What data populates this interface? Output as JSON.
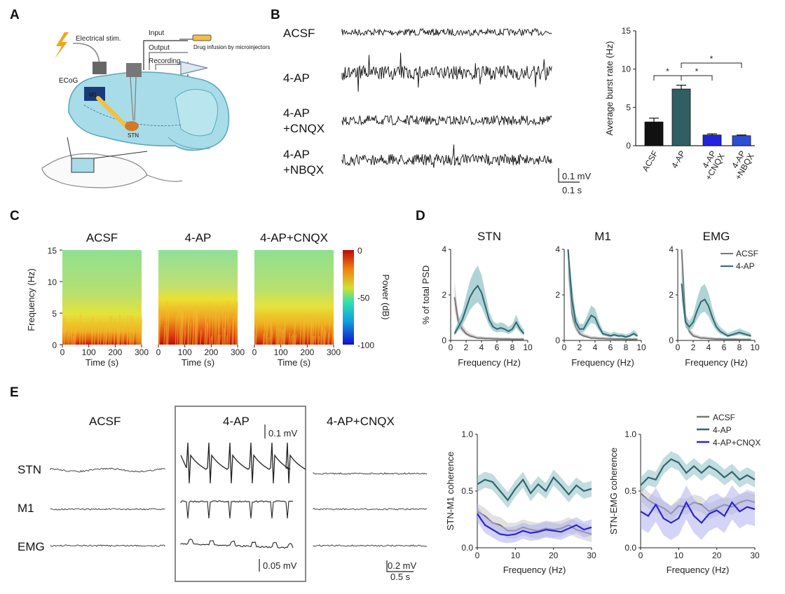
{
  "panels": {
    "a": "A",
    "b": "B",
    "c": "C",
    "d": "D",
    "e": "E"
  },
  "panelA": {
    "electrical_stim": "Electrical stim.",
    "input": "Input",
    "output": "Output",
    "drug": "Drug infusion by microinjectors",
    "recording": "Recording",
    "ecog": "ECoG",
    "m1": "M1",
    "stn": "STN"
  },
  "panelB": {
    "trace_labels": [
      "ACSF",
      "4-AP",
      "4-AP",
      "+CNQX",
      "4-AP",
      "+NBQX"
    ],
    "scale_mv": "0.1 mV",
    "scale_s": "0.1 s",
    "sig": "*"
  },
  "chart_data": [
    {
      "id": "b_bar",
      "type": "bar",
      "categories": [
        "ACSF",
        "4-AP",
        "4-AP +CNQX",
        "4-AP +NBQX"
      ],
      "tick_lines": [
        [
          "ACSF"
        ],
        [
          "4-AP"
        ],
        [
          "4-AP",
          "+CNQX"
        ],
        [
          "4-AP",
          "+NBQX"
        ]
      ],
      "values": [
        3.1,
        7.4,
        1.4,
        1.3
      ],
      "errors": [
        0.5,
        0.5,
        0.15,
        0.1
      ],
      "colors": [
        "#111111",
        "#2f5f62",
        "#2222dd",
        "#2a4fd6"
      ],
      "ylabel": "Average burst rate (Hz)",
      "ylim": [
        0,
        15
      ],
      "yticks": [
        0,
        5,
        10,
        15
      ]
    },
    {
      "id": "c_spectrograms",
      "type": "heatmap",
      "titles": [
        "ACSF",
        "4-AP",
        "4-AP+CNQX"
      ],
      "xlabel": "Time (s)",
      "ylabel": "Frequency (Hz)",
      "xlim": [
        0,
        300
      ],
      "ylim": [
        0,
        15
      ],
      "xticks": [
        0,
        100,
        200,
        300
      ],
      "yticks": [
        0,
        5,
        10,
        15
      ],
      "colorbar_label": "Power (dB)",
      "colorbar_range": [
        -100,
        0
      ],
      "colorbar_ticks": [
        0,
        -50,
        -100
      ]
    },
    {
      "id": "d_psd",
      "type": "line",
      "titles": [
        "STN",
        "M1",
        "EMG"
      ],
      "xlabel": "Frequency (Hz)",
      "ylabel": "% of total PSD",
      "xlim": [
        0,
        10
      ],
      "ylim": [
        0,
        4
      ],
      "xticks": [
        0,
        2,
        4,
        6,
        8,
        10
      ],
      "yticks": [
        0,
        2,
        4
      ],
      "legend": [
        "ACSF",
        "4-AP"
      ],
      "x": [
        0.5,
        1,
        1.5,
        2,
        2.5,
        3,
        3.5,
        4,
        4.5,
        5,
        5.5,
        6,
        6.5,
        7,
        7.5,
        8,
        8.5,
        9,
        9.5
      ],
      "series": [
        {
          "panel": "STN",
          "name": "ACSF",
          "values": [
            1.9,
            0.8,
            0.5,
            0.3,
            0.2,
            0.15,
            0.1,
            0.1,
            0.08,
            0.08,
            0.07,
            0.07,
            0.06,
            0.06,
            0.06,
            0.05,
            0.05,
            0.05,
            0.05
          ]
        },
        {
          "panel": "STN",
          "name": "4-AP",
          "values": [
            0.3,
            0.6,
            0.9,
            1.4,
            1.9,
            2.2,
            2.4,
            2.1,
            1.5,
            0.9,
            0.6,
            0.5,
            0.55,
            0.5,
            0.4,
            0.5,
            0.8,
            0.5,
            0.3
          ]
        },
        {
          "panel": "M1",
          "name": "ACSF",
          "values": [
            4.0,
            1.2,
            0.6,
            0.3,
            0.2,
            0.15,
            0.1,
            0.1,
            0.08,
            0.08,
            0.07,
            0.07,
            0.06,
            0.06,
            0.06,
            0.05,
            0.05,
            0.05,
            0.05
          ]
        },
        {
          "panel": "M1",
          "name": "4-AP",
          "values": [
            4.0,
            1.8,
            0.8,
            0.5,
            0.5,
            0.8,
            1.1,
            1.0,
            0.6,
            0.3,
            0.25,
            0.2,
            0.25,
            0.2,
            0.2,
            0.15,
            0.2,
            0.3,
            0.2
          ]
        },
        {
          "panel": "EMG",
          "name": "ACSF",
          "values": [
            4.0,
            0.9,
            0.4,
            0.2,
            0.15,
            0.1,
            0.1,
            0.08,
            0.07,
            0.06,
            0.06,
            0.05,
            0.05,
            0.05,
            0.05,
            0.04,
            0.04,
            0.04,
            0.04
          ]
        },
        {
          "panel": "EMG",
          "name": "4-AP",
          "values": [
            2.5,
            0.8,
            0.6,
            0.8,
            1.3,
            1.7,
            1.8,
            1.5,
            1.0,
            0.6,
            0.4,
            0.3,
            0.2,
            0.25,
            0.3,
            0.35,
            0.3,
            0.25,
            0.2
          ]
        }
      ]
    },
    {
      "id": "e_coherence",
      "type": "line",
      "ylabels": [
        "STN-M1 coherence",
        "STN-EMG coherence"
      ],
      "xlabel": "Frequency (Hz)",
      "xlim": [
        0,
        30
      ],
      "ylim": [
        0,
        1.0
      ],
      "xticks": [
        0,
        10,
        20,
        30
      ],
      "yticks": [
        0,
        0.5,
        1.0
      ],
      "ytick_labels": [
        "0.0",
        "0.5",
        "1.0"
      ],
      "legend": [
        "ACSF",
        "4-AP",
        "4-AP+CNQX"
      ],
      "x": [
        0,
        2,
        4,
        6,
        8,
        10,
        12,
        14,
        16,
        18,
        20,
        22,
        24,
        26,
        28,
        30
      ],
      "series": [
        {
          "panel": "STN-M1",
          "name": "ACSF",
          "values": [
            0.32,
            0.28,
            0.22,
            0.2,
            0.15,
            0.15,
            0.18,
            0.16,
            0.15,
            0.17,
            0.16,
            0.17,
            0.2,
            0.16,
            0.14,
            0.12
          ]
        },
        {
          "panel": "STN-M1",
          "name": "4-AP",
          "values": [
            0.56,
            0.6,
            0.58,
            0.5,
            0.42,
            0.52,
            0.6,
            0.48,
            0.56,
            0.5,
            0.62,
            0.55,
            0.47,
            0.55,
            0.5,
            0.52
          ]
        },
        {
          "panel": "STN-M1",
          "name": "4-AP+CNQX",
          "values": [
            0.3,
            0.2,
            0.16,
            0.12,
            0.11,
            0.12,
            0.15,
            0.13,
            0.14,
            0.16,
            0.15,
            0.14,
            0.17,
            0.2,
            0.16,
            0.18
          ]
        },
        {
          "panel": "STN-EMG",
          "name": "ACSF",
          "values": [
            0.48,
            0.42,
            0.38,
            0.35,
            0.3,
            0.37,
            0.36,
            0.4,
            0.38,
            0.32,
            0.35,
            0.38,
            0.36,
            0.4,
            0.42,
            0.4
          ]
        },
        {
          "panel": "STN-EMG",
          "name": "4-AP",
          "values": [
            0.55,
            0.62,
            0.6,
            0.72,
            0.78,
            0.75,
            0.66,
            0.72,
            0.66,
            0.72,
            0.68,
            0.62,
            0.67,
            0.6,
            0.64,
            0.6
          ]
        },
        {
          "panel": "STN-EMG",
          "name": "4-AP+CNQX",
          "values": [
            0.32,
            0.28,
            0.38,
            0.26,
            0.22,
            0.26,
            0.4,
            0.28,
            0.22,
            0.3,
            0.33,
            0.28,
            0.4,
            0.32,
            0.36,
            0.34
          ]
        }
      ]
    }
  ],
  "panelE": {
    "titles": [
      "ACSF",
      "4-AP",
      "4-AP+CNQX"
    ],
    "row_labels": [
      "STN",
      "M1",
      "EMG"
    ],
    "scale_top": "0.1 mV",
    "scale_bottom": "0.05 mV",
    "scale_right_mv": "0.2 mV",
    "scale_right_s": "0.5 s"
  },
  "colors": {
    "acsf": "#777777",
    "fourap": "#2f6870",
    "fourap_band": "#8fc0c4",
    "cnqx": "#2a22dd",
    "cnqx_band": "#b0b0f0",
    "acsf_band": "#c8c8c8",
    "brain": "#a8dce8"
  }
}
